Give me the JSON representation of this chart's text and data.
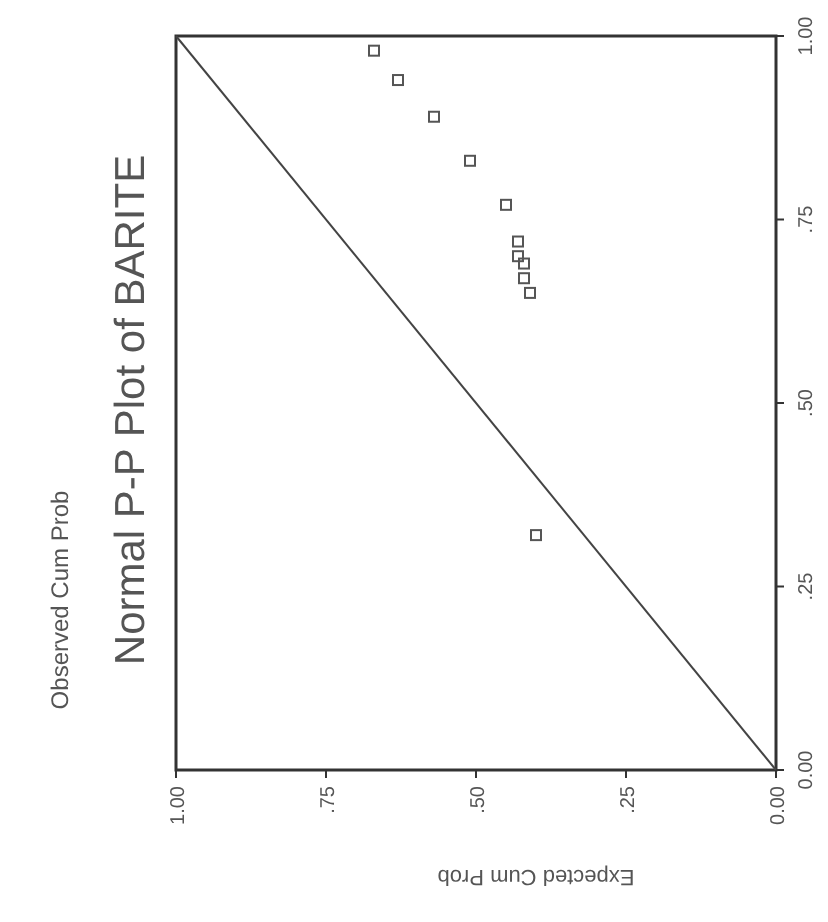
{
  "chart_data": {
    "type": "scatter",
    "title": "Normal P-P Plot of BARITE",
    "xlabel": "Expected Cum Prob",
    "ylabel": "Observed Cum Prob",
    "xlim": [
      1,
      0
    ],
    "ylim": [
      0,
      1
    ],
    "xticks": [
      {
        "value": 1,
        "label": "1.00"
      },
      {
        "value": 0.75,
        "label": ".75"
      },
      {
        "value": 0.5,
        "label": ".50"
      },
      {
        "value": 0.25,
        "label": ".25"
      },
      {
        "value": 0,
        "label": "0.00"
      }
    ],
    "yticks": [
      {
        "value": 0,
        "label": "0.00"
      },
      {
        "value": 0.25,
        "label": ".25"
      },
      {
        "value": 0.5,
        "label": ".50"
      },
      {
        "value": 0.75,
        "label": ".75"
      },
      {
        "value": 1,
        "label": "1.00"
      }
    ],
    "grid": false,
    "series": [
      {
        "marker": "square",
        "color": "#555555",
        "x": [
          0.4,
          0.41,
          0.42,
          0.42,
          0.43,
          0.43,
          0.45,
          0.51,
          0.57,
          0.63,
          0.67
        ],
        "values": [
          0.32,
          0.65,
          0.67,
          0.69,
          0.7,
          0.72,
          0.77,
          0.83,
          0.89,
          0.94,
          0.98
        ]
      },
      {
        "type": "line",
        "color": "#444444",
        "x": [
          0,
          1
        ],
        "values": [
          0,
          1
        ]
      }
    ]
  }
}
